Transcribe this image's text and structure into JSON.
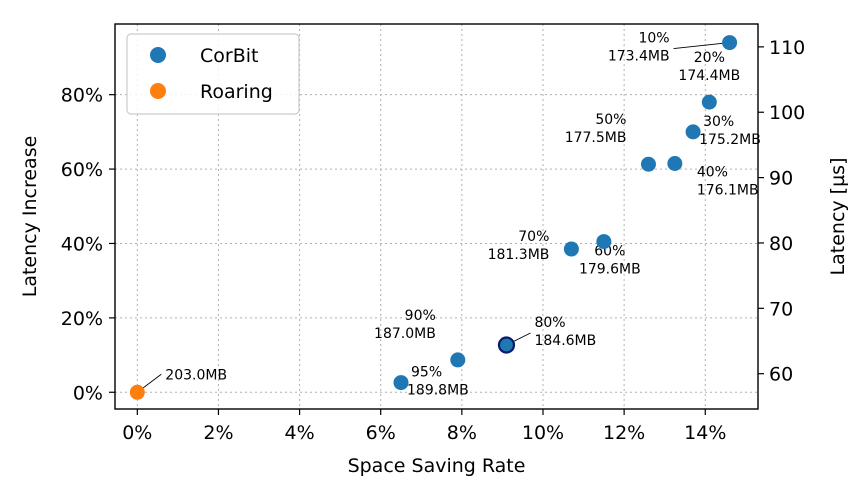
{
  "chart_data": {
    "type": "scatter",
    "xlabel": "Space Saving Rate",
    "ylabel": "Latency Increase",
    "ylabel_right": "Latency [µs]",
    "xlim": [
      -0.55,
      15.3
    ],
    "ylim": [
      -4.5,
      99
    ],
    "y2lim": [
      54.6,
      113.5
    ],
    "x_ticks": [
      0,
      2,
      4,
      6,
      8,
      10,
      12,
      14
    ],
    "x_tick_labels": [
      "0%",
      "2%",
      "4%",
      "6%",
      "8%",
      "10%",
      "12%",
      "14%"
    ],
    "y_ticks": [
      0,
      20,
      40,
      60,
      80
    ],
    "y_tick_labels": [
      "0%",
      "20%",
      "40%",
      "60%",
      "80%"
    ],
    "y2_ticks": [
      60,
      70,
      80,
      90,
      100,
      110
    ],
    "y2_tick_labels": [
      "60",
      "70",
      "80",
      "90",
      "100",
      "110"
    ],
    "grid": true,
    "legend_position": "top-left",
    "colors": {
      "corbit": "#1f77b4",
      "roaring": "#ff7f0e",
      "highlight_edge": "#0a1a6e"
    },
    "series": [
      {
        "name": "CorBit",
        "color": "#1f77b4",
        "points": [
          {
            "x": 14.6,
            "y": 94.0,
            "label1": "10%",
            "label2": "173.4MB",
            "pos": "leader-left"
          },
          {
            "x": 14.1,
            "y": 78.0,
            "label1": "20%",
            "label2": "174.4MB",
            "pos": "above"
          },
          {
            "x": 13.7,
            "y": 70.0,
            "label1": "30%",
            "label2": "175.2MB",
            "pos": "right"
          },
          {
            "x": 13.25,
            "y": 61.5,
            "label1": "40%",
            "label2": "176.1MB",
            "pos": "below-right"
          },
          {
            "x": 12.6,
            "y": 61.3,
            "label1": "50%",
            "label2": "177.5MB",
            "pos": "above-left"
          },
          {
            "x": 11.5,
            "y": 40.5,
            "label1": "60%",
            "label2": "179.6MB",
            "pos": "below"
          },
          {
            "x": 10.7,
            "y": 38.5,
            "label1": "70%",
            "label2": "181.3MB",
            "pos": "left"
          },
          {
            "x": 9.1,
            "y": 12.7,
            "label1": "80%",
            "label2": "184.6MB",
            "pos": "leader-right",
            "highlight": true
          },
          {
            "x": 7.9,
            "y": 8.7,
            "label1": "90%",
            "label2": "187.0MB",
            "pos": "above-left"
          },
          {
            "x": 6.5,
            "y": 2.6,
            "label1": "95%",
            "label2": "189.8MB",
            "pos": "right"
          }
        ]
      },
      {
        "name": "Roaring",
        "color": "#ff7f0e",
        "points": [
          {
            "x": 0.0,
            "y": 0.0,
            "label1": "",
            "label2": "203.0MB",
            "pos": "leader-right"
          }
        ]
      }
    ]
  }
}
